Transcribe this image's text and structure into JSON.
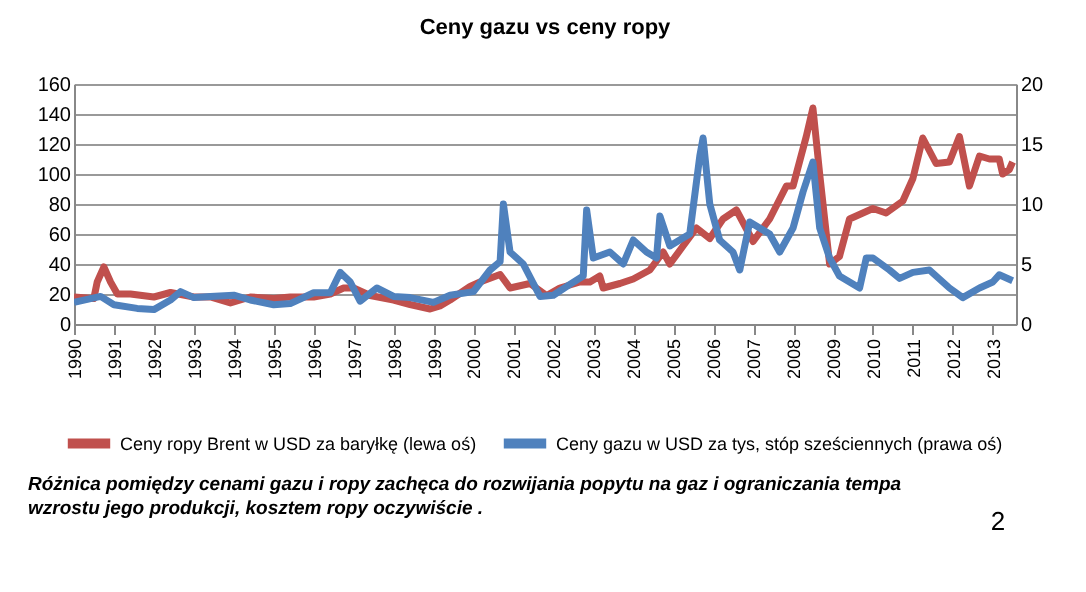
{
  "chart_data": {
    "type": "line",
    "title": "Ceny gazu vs ceny ropy",
    "xlim": [
      "1990-01",
      "2013-08"
    ],
    "xticks": [
      "1990",
      "1991",
      "1992",
      "1993",
      "1994",
      "1995",
      "1996",
      "1997",
      "1998",
      "1999",
      "2000",
      "2001",
      "2002",
      "2003",
      "2004",
      "2005",
      "2006",
      "2007",
      "2008",
      "2009",
      "2010",
      "2011",
      "2012",
      "2013"
    ],
    "ylim": [
      0,
      160
    ],
    "yticks": [
      0,
      20,
      40,
      60,
      80,
      100,
      120,
      140,
      160
    ],
    "y2lim": [
      0,
      20
    ],
    "y2ticks": [
      0,
      5,
      10,
      15,
      20
    ],
    "grid": "y",
    "legend": "bottom",
    "series": [
      {
        "name": "Ceny ropy Brent w USD za baryłkę (lewa oś)",
        "color": "#c0504d",
        "x": [
          "1990-01",
          "1990-07",
          "1990-08",
          "1990-10",
          "1990-12",
          "1991-02",
          "1991-06",
          "1992-01",
          "1992-06",
          "1993-01",
          "1993-06",
          "1993-12",
          "1994-06",
          "1995-01",
          "1995-06",
          "1996-01",
          "1996-06",
          "1996-10",
          "1997-01",
          "1997-06",
          "1998-01",
          "1998-06",
          "1998-12",
          "1999-03",
          "1999-06",
          "1999-12",
          "2000-03",
          "2000-09",
          "2000-12",
          "2001-06",
          "2001-11",
          "2002-03",
          "2002-09",
          "2002-12",
          "2003-03",
          "2003-04",
          "2003-09",
          "2004-01",
          "2004-06",
          "2004-10",
          "2004-12",
          "2005-04",
          "2005-08",
          "2005-12",
          "2006-04",
          "2006-08",
          "2007-01",
          "2007-06",
          "2007-11",
          "2008-01",
          "2008-05",
          "2008-07",
          "2008-09",
          "2008-12",
          "2009-03",
          "2009-06",
          "2009-10",
          "2010-01",
          "2010-05",
          "2010-10",
          "2011-01",
          "2011-04",
          "2011-08",
          "2011-12",
          "2012-03",
          "2012-06",
          "2012-09",
          "2012-12",
          "2013-03",
          "2013-04",
          "2013-06",
          "2013-07"
        ],
        "values": [
          18,
          17,
          28,
          38,
          28,
          20,
          20,
          18,
          21,
          18,
          18,
          14,
          18,
          17,
          18,
          18,
          20,
          24,
          24,
          19,
          16,
          13,
          10,
          12,
          16,
          25,
          28,
          33,
          24,
          27,
          19,
          24,
          28,
          28,
          32,
          24,
          27,
          30,
          36,
          48,
          40,
          52,
          64,
          57,
          70,
          76,
          55,
          70,
          92,
          92,
          125,
          144,
          100,
          40,
          45,
          70,
          74,
          77,
          74,
          82,
          97,
          124,
          107,
          108,
          125,
          92,
          112,
          110,
          110,
          100,
          103,
          108
        ]
      },
      {
        "name": "Ceny gazu w USD za tys, stóp sześciennych (prawa oś)",
        "color": "#4f81bd",
        "axis": "y2",
        "x": [
          "1990-01",
          "1990-09",
          "1991-01",
          "1991-08",
          "1992-01",
          "1992-06",
          "1992-09",
          "1993-01",
          "1993-06",
          "1994-01",
          "1994-06",
          "1995-01",
          "1995-06",
          "1996-01",
          "1996-06",
          "1996-09",
          "1996-12",
          "1997-03",
          "1997-08",
          "1998-01",
          "1998-06",
          "1999-01",
          "1999-06",
          "2000-01",
          "2000-06",
          "2000-09",
          "2000-10",
          "2000-12",
          "2001-04",
          "2001-09",
          "2002-01",
          "2002-06",
          "2002-10",
          "2002-11",
          "2003-01",
          "2003-06",
          "2003-10",
          "2004-01",
          "2004-05",
          "2004-08",
          "2004-09",
          "2004-12",
          "2005-03",
          "2005-06",
          "2005-09",
          "2005-10",
          "2005-12",
          "2006-03",
          "2006-07",
          "2006-09",
          "2006-12",
          "2007-06",
          "2007-09",
          "2008-01",
          "2008-04",
          "2008-07",
          "2008-09",
          "2008-12",
          "2009-03",
          "2009-09",
          "2009-11",
          "2010-01",
          "2010-06",
          "2010-09",
          "2011-01",
          "2011-06",
          "2011-12",
          "2012-04",
          "2012-09",
          "2013-01",
          "2013-03",
          "2013-07"
        ],
        "values": [
          1.8,
          2.3,
          1.6,
          1.3,
          1.2,
          2.0,
          2.7,
          2.2,
          2.3,
          2.4,
          2.0,
          1.6,
          1.7,
          2.6,
          2.6,
          4.3,
          3.5,
          1.9,
          3.0,
          2.3,
          2.2,
          1.8,
          2.4,
          2.7,
          4.5,
          5.2,
          10,
          6,
          5,
          2.3,
          2.4,
          3.3,
          4,
          9.5,
          5.5,
          6,
          5,
          7,
          6,
          5.5,
          9,
          6.5,
          7,
          7.5,
          14,
          15.5,
          10,
          7,
          6,
          4.5,
          8.5,
          7.5,
          6,
          8,
          11,
          13.5,
          8,
          5.5,
          4,
          3,
          5.5,
          5.5,
          4.5,
          3.8,
          4.3,
          4.5,
          3.0,
          2.2,
          3,
          3.5,
          4.1,
          3.6
        ]
      }
    ],
    "annotations": [
      "Różnica pomiędzy cenami gazu i ropy zachęca  do rozwijania  popytu na gaz i ograniczania  tempa\nwzrostu jego produkcji,  kosztem  ropy oczywiście .",
      "2"
    ]
  }
}
